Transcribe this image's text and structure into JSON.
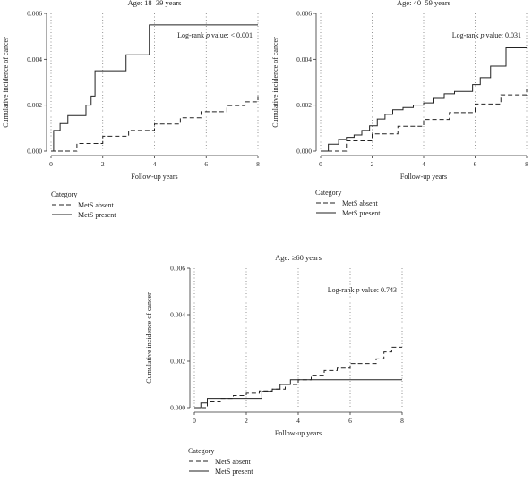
{
  "chart_data": [
    {
      "type": "line",
      "step": true,
      "title": "Age: 18–39 years",
      "xlabel": "Follow-up years",
      "ylabel": "Cumulative incidence of cancer",
      "xlim": [
        0,
        8
      ],
      "ylim": [
        0,
        0.006
      ],
      "xticks": [
        0,
        2,
        4,
        6,
        8
      ],
      "yticks": [
        0,
        0.002,
        0.004,
        0.006
      ],
      "ytick_labels": [
        "0.000",
        "0.002",
        "0.004",
        "0.006"
      ],
      "grid_x": true,
      "annotation_prefix": "Log-rank ",
      "annotation_italic": "p",
      "annotation_suffix": " value: < 0.001",
      "legend_title": "Category",
      "legend_position": "below",
      "series": [
        {
          "name": "MetS absent",
          "style": "dashed",
          "x": [
            0,
            1,
            2,
            3,
            4,
            5,
            5.8,
            6.8,
            7.5,
            8
          ],
          "y": [
            0,
            0.00033,
            0.00065,
            0.0009,
            0.00118,
            0.00145,
            0.00172,
            0.00198,
            0.00215,
            0.0024
          ]
        },
        {
          "name": "MetS present",
          "style": "solid",
          "x": [
            0,
            0.1,
            0.35,
            0.65,
            1.05,
            1.35,
            1.45,
            1.55,
            1.7,
            2.9,
            3.8,
            8
          ],
          "y": [
            0,
            0.0009,
            0.0012,
            0.00155,
            0.00155,
            0.002,
            0.002,
            0.0024,
            0.0035,
            0.0042,
            0.0055,
            0.0055
          ]
        }
      ]
    },
    {
      "type": "line",
      "step": true,
      "title": "Age: 40–59 years",
      "xlabel": "Follow-up years",
      "ylabel": "Cumulative incidence of cancer",
      "xlim": [
        0,
        8
      ],
      "ylim": [
        0,
        0.006
      ],
      "xticks": [
        0,
        2,
        4,
        6,
        8
      ],
      "yticks": [
        0,
        0.002,
        0.004,
        0.006
      ],
      "ytick_labels": [
        "0.000",
        "0.002",
        "0.004",
        "0.006"
      ],
      "grid_x": true,
      "annotation_prefix": "Log-rank ",
      "annotation_italic": "p",
      "annotation_suffix": " value: 0.031",
      "legend_title": "Category",
      "legend_position": "below",
      "series": [
        {
          "name": "MetS absent",
          "style": "dashed",
          "x": [
            0,
            1,
            2,
            3,
            4,
            5,
            6,
            7,
            8
          ],
          "y": [
            0,
            0.00045,
            0.00075,
            0.00108,
            0.00138,
            0.00168,
            0.00205,
            0.00245,
            0.0027
          ]
        },
        {
          "name": "MetS present",
          "style": "solid",
          "x": [
            0,
            0.3,
            0.7,
            1.0,
            1.3,
            1.6,
            1.9,
            2.2,
            2.5,
            2.8,
            3.2,
            3.6,
            4.0,
            4.4,
            4.8,
            5.2,
            5.6,
            5.9,
            6.2,
            6.6,
            7.2,
            8
          ],
          "y": [
            0,
            0.0003,
            0.0005,
            0.0006,
            0.0007,
            0.0009,
            0.0011,
            0.0014,
            0.0016,
            0.0018,
            0.0019,
            0.002,
            0.0021,
            0.0023,
            0.0025,
            0.0026,
            0.0026,
            0.0029,
            0.0032,
            0.0037,
            0.0045,
            0.0045
          ]
        }
      ]
    },
    {
      "type": "line",
      "step": true,
      "title": "Age: ≥60 years",
      "xlabel": "Follow-up years",
      "ylabel": "Cumulative incidence of cancer",
      "xlim": [
        0,
        8
      ],
      "ylim": [
        0,
        0.006
      ],
      "xticks": [
        0,
        2,
        4,
        6,
        8
      ],
      "yticks": [
        0,
        0.002,
        0.004,
        0.006
      ],
      "ytick_labels": [
        "0.000",
        "0.002",
        "0.004",
        "0.006"
      ],
      "grid_x": true,
      "annotation_prefix": "Log-rank ",
      "annotation_italic": "p",
      "annotation_suffix": " value: 0.743",
      "legend_title": "Category",
      "legend_position": "below",
      "series": [
        {
          "name": "MetS absent",
          "style": "dashed",
          "x": [
            0,
            0.5,
            1,
            1.5,
            2,
            2.5,
            3,
            3.5,
            4,
            4.5,
            5,
            5.5,
            6,
            6.5,
            7,
            7.3,
            7.6,
            8
          ],
          "y": [
            0,
            0.00025,
            0.0004,
            0.00052,
            0.00062,
            0.00072,
            0.0008,
            0.001,
            0.0012,
            0.0014,
            0.0016,
            0.0017,
            0.0019,
            0.0019,
            0.0021,
            0.0024,
            0.0026,
            0.0026
          ]
        },
        {
          "name": "MetS present",
          "style": "solid",
          "x": [
            0,
            0.25,
            0.5,
            1.6,
            2.1,
            2.6,
            3.0,
            3.3,
            3.7,
            8
          ],
          "y": [
            0,
            0.0002,
            0.0004,
            0.0004,
            0.0004,
            0.0007,
            0.0008,
            0.001,
            0.0012,
            0.0012
          ]
        }
      ]
    }
  ]
}
